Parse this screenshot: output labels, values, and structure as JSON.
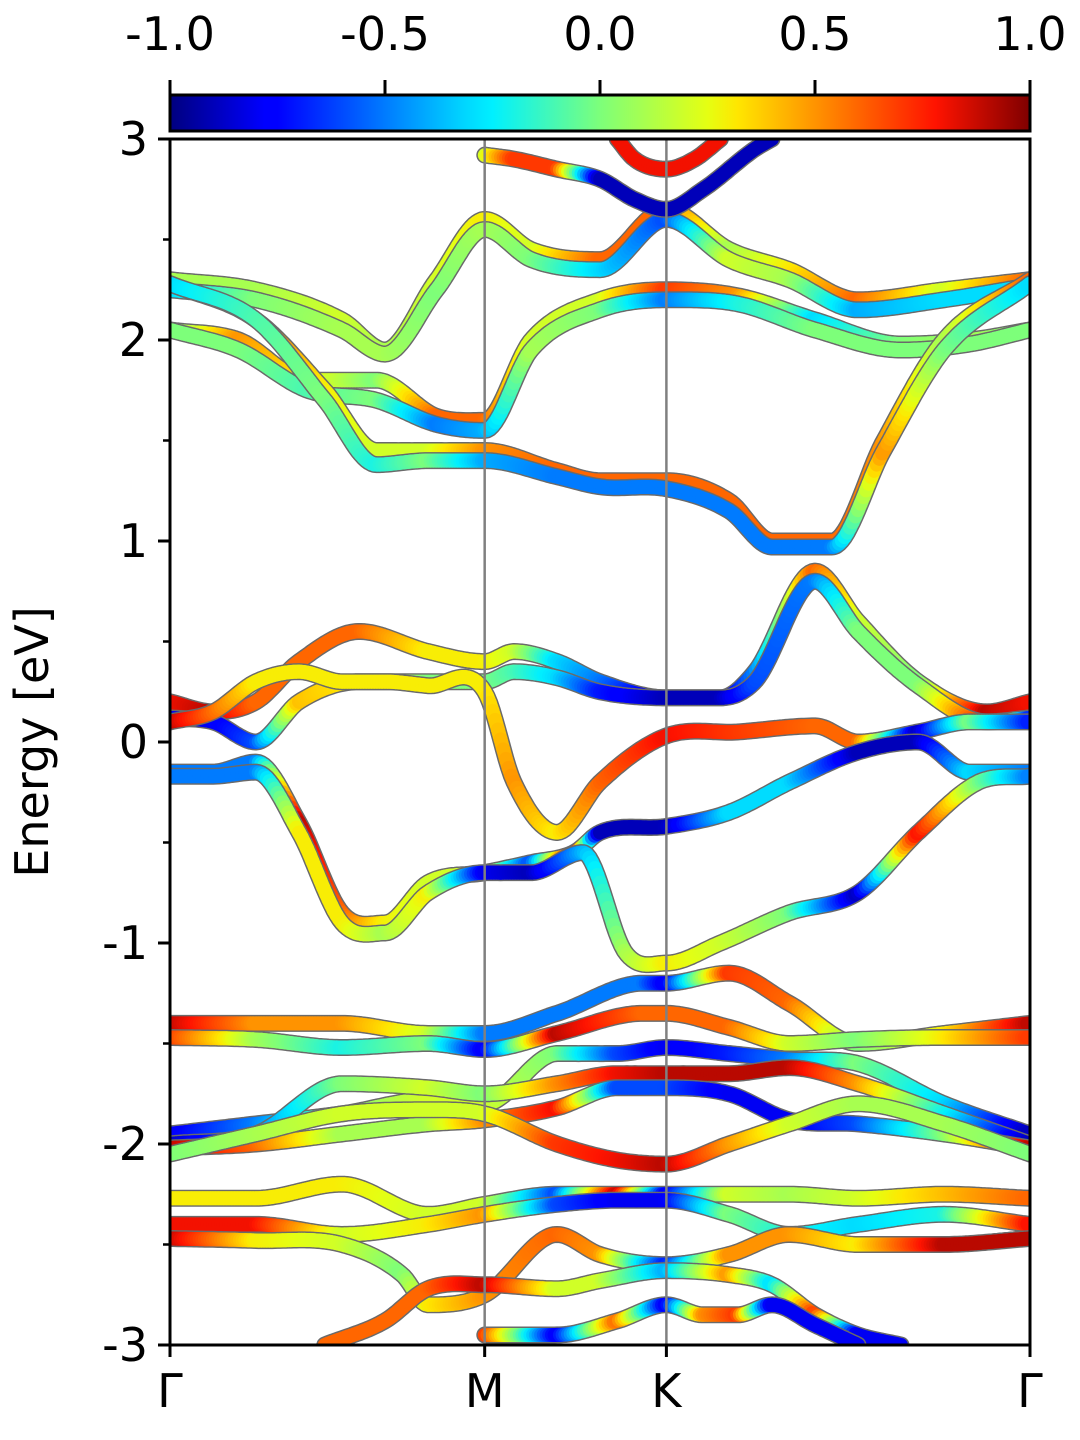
{
  "chart_data": {
    "type": "line",
    "ylabel": "Energy [eV]",
    "xlabel": "",
    "title": "",
    "ylim": [
      -3,
      3
    ],
    "y_ticks": [
      "3",
      "2",
      "1",
      "0",
      "-1",
      "-2",
      "-3"
    ],
    "y_tick_values": [
      3,
      2,
      1,
      0,
      -1,
      -2,
      -3
    ],
    "x_ticks": [
      {
        "label": "Γ",
        "x": 0.0
      },
      {
        "label": "M",
        "x": 0.3659
      },
      {
        "label": "K",
        "x": 0.5772
      },
      {
        "label": "Γ",
        "x": 1.0
      }
    ],
    "xlim": [
      0,
      1
    ],
    "colorbar": {
      "colormap": "jet",
      "range": [
        -1.0,
        1.0
      ],
      "tick_labels": [
        "-1.0",
        "-0.5",
        "0.0",
        "0.5",
        "1.0"
      ],
      "tick_values": [
        -1.0,
        -0.5,
        0.0,
        0.5,
        1.0
      ]
    },
    "bands": [
      {
        "x": [
          0,
          0.1,
          0.2,
          0.25,
          0.31,
          0.366,
          0.42,
          0.5,
          0.577,
          0.65,
          0.72,
          0.8,
          0.9,
          1
        ],
        "y": [
          2.3,
          2.25,
          2.1,
          1.95,
          2.3,
          2.6,
          2.45,
          2.4,
          2.65,
          2.45,
          2.35,
          2.2,
          2.25,
          2.3
        ],
        "c": [
          0.1,
          0.1,
          0.2,
          0.1,
          0.2,
          0.3,
          0.2,
          0.6,
          0.6,
          0.1,
          0.3,
          0.6,
          0.2,
          0.6
        ]
      },
      {
        "x": [
          0,
          0.1,
          0.2,
          0.25,
          0.31,
          0.366,
          0.42,
          0.5,
          0.577,
          0.65,
          0.72,
          0.8,
          0.9,
          1
        ],
        "y": [
          2.25,
          2.2,
          2.05,
          1.93,
          2.25,
          2.55,
          2.4,
          2.35,
          2.6,
          2.4,
          2.3,
          2.15,
          2.2,
          2.27
        ],
        "c": [
          -0.3,
          0.0,
          0.1,
          0.1,
          0.0,
          0.1,
          0.0,
          -0.3,
          -0.6,
          0.2,
          0.1,
          -0.4,
          -0.3,
          -0.3
        ]
      },
      {
        "x": [
          0,
          0.08,
          0.16,
          0.24,
          0.31,
          0.366,
          0.42,
          0.5,
          0.577,
          0.66,
          0.75,
          0.85,
          0.93,
          1
        ],
        "y": [
          2.05,
          2.0,
          1.8,
          1.8,
          1.62,
          1.6,
          2.0,
          2.2,
          2.25,
          2.22,
          2.1,
          1.98,
          2.0,
          2.05
        ],
        "c": [
          0.0,
          0.5,
          0.3,
          0.0,
          0.6,
          0.6,
          0.2,
          0.2,
          0.7,
          0.5,
          -0.3,
          0.0,
          0.1,
          0.0
        ]
      },
      {
        "x": [
          0,
          0.08,
          0.16,
          0.24,
          0.31,
          0.366,
          0.42,
          0.5,
          0.577,
          0.66,
          0.75,
          0.85,
          0.93,
          1
        ],
        "y": [
          2.05,
          1.95,
          1.75,
          1.7,
          1.58,
          1.55,
          1.95,
          2.15,
          2.2,
          2.18,
          2.05,
          1.95,
          1.98,
          2.05
        ],
        "c": [
          0.0,
          0.0,
          -0.1,
          0.0,
          -0.5,
          -0.4,
          0.1,
          0.0,
          -0.5,
          -0.2,
          0.0,
          0.0,
          0.0,
          0.0
        ]
      },
      {
        "x": [
          0,
          0.1,
          0.18,
          0.24,
          0.3,
          0.366,
          0.45,
          0.5,
          0.577,
          0.65,
          0.7,
          0.77,
          0.83,
          0.9,
          1
        ],
        "y": [
          2.28,
          2.1,
          1.75,
          1.45,
          1.45,
          1.45,
          1.35,
          1.3,
          1.3,
          1.2,
          1.0,
          1.0,
          1.5,
          2.0,
          2.3
        ],
        "c": [
          0.1,
          0.6,
          0.3,
          0.2,
          0.2,
          0.5,
          0.6,
          0.6,
          0.6,
          0.6,
          0.6,
          0.6,
          0.5,
          0.1,
          0.6
        ]
      },
      {
        "x": [
          0,
          0.1,
          0.18,
          0.24,
          0.3,
          0.366,
          0.45,
          0.5,
          0.577,
          0.65,
          0.7,
          0.77,
          0.83,
          0.9,
          1
        ],
        "y": [
          2.28,
          2.1,
          1.7,
          1.38,
          1.4,
          1.4,
          1.32,
          1.27,
          1.26,
          1.15,
          0.97,
          0.97,
          1.45,
          1.95,
          2.28
        ],
        "c": [
          -0.3,
          -0.1,
          0.0,
          -0.2,
          0.0,
          -0.4,
          -0.5,
          -0.5,
          -0.5,
          -0.5,
          -0.5,
          -0.5,
          0.5,
          0.0,
          -0.3
        ]
      },
      {
        "x": [
          0,
          0.05,
          0.1,
          0.15,
          0.22,
          0.3,
          0.366,
          0.4,
          0.45,
          0.5,
          0.577,
          0.64,
          0.68,
          0.75,
          0.8,
          0.87,
          0.95,
          1
        ],
        "y": [
          0.2,
          0.15,
          0.2,
          0.4,
          0.55,
          0.45,
          0.4,
          0.45,
          0.4,
          0.3,
          0.22,
          0.22,
          0.35,
          0.85,
          0.6,
          0.3,
          0.15,
          0.2
        ],
        "c": [
          0.8,
          0.9,
          0.6,
          0.6,
          0.6,
          0.3,
          0.3,
          0.2,
          -0.3,
          -0.5,
          -0.9,
          -0.9,
          -0.5,
          0.6,
          0.2,
          0.0,
          0.9,
          0.8
        ]
      },
      {
        "x": [
          0,
          0.05,
          0.1,
          0.15,
          0.22,
          0.3,
          0.366,
          0.4,
          0.45,
          0.5,
          0.577,
          0.64,
          0.68,
          0.75,
          0.8,
          0.87,
          0.95,
          1
        ],
        "y": [
          0.12,
          0.1,
          0.0,
          0.2,
          0.3,
          0.3,
          0.3,
          0.35,
          0.32,
          0.25,
          0.22,
          0.22,
          0.3,
          0.8,
          0.55,
          0.28,
          0.1,
          0.12
        ],
        "c": [
          -0.8,
          -0.8,
          -0.6,
          0.4,
          0.3,
          0.0,
          0.0,
          -0.1,
          -0.3,
          -0.7,
          -0.9,
          -0.9,
          -0.6,
          -0.5,
          0.0,
          0.0,
          0.8,
          -0.7
        ]
      },
      {
        "x": [
          0,
          0.05,
          0.1,
          0.15,
          0.2,
          0.25,
          0.3,
          0.366,
          0.4,
          0.45,
          0.5,
          0.577,
          0.66,
          0.75,
          0.8,
          0.87,
          0.93,
          1
        ],
        "y": [
          0.1,
          0.15,
          0.3,
          0.35,
          0.3,
          0.3,
          0.28,
          0.25,
          -0.2,
          -0.45,
          -0.2,
          0.03,
          0.05,
          0.08,
          0.0,
          0.05,
          0.1,
          0.1
        ],
        "c": [
          0.9,
          0.6,
          0.3,
          0.3,
          0.3,
          0.3,
          0.3,
          0.3,
          0.5,
          0.3,
          0.6,
          0.8,
          0.7,
          0.6,
          0.6,
          -0.9,
          0.0,
          -0.7
        ]
      },
      {
        "x": [
          0,
          0.05,
          0.1,
          0.15,
          0.2,
          0.25,
          0.3,
          0.366,
          0.42,
          0.47,
          0.5,
          0.577,
          0.65,
          0.72,
          0.8,
          0.87,
          0.93,
          1
        ],
        "y": [
          -0.15,
          -0.15,
          -0.1,
          -0.4,
          -0.85,
          -0.9,
          -0.7,
          -0.65,
          -0.6,
          -0.55,
          -0.45,
          -0.42,
          -0.35,
          -0.2,
          -0.05,
          0.0,
          -0.15,
          -0.15
        ],
        "c": [
          -0.5,
          -0.5,
          -0.5,
          0.9,
          0.6,
          0.3,
          0.2,
          0.2,
          -0.6,
          0.9,
          -0.9,
          -0.9,
          -0.3,
          -0.3,
          -0.9,
          -0.9,
          -0.3,
          -0.5
        ]
      },
      {
        "x": [
          0,
          0.05,
          0.1,
          0.15,
          0.2,
          0.25,
          0.3,
          0.366,
          0.42,
          0.48,
          0.53,
          0.577,
          0.64,
          0.72,
          0.8,
          0.87,
          0.94,
          1
        ],
        "y": [
          -0.17,
          -0.17,
          -0.15,
          -0.45,
          -0.9,
          -0.95,
          -0.75,
          -0.65,
          -0.65,
          -0.55,
          -1.05,
          -1.1,
          -1.0,
          -0.85,
          -0.75,
          -0.45,
          -0.2,
          -0.17
        ],
        "c": [
          -0.5,
          -0.5,
          -0.5,
          0.3,
          0.3,
          0.1,
          0.3,
          -0.8,
          -0.9,
          -0.4,
          0.1,
          0.3,
          0.2,
          0.0,
          -0.9,
          0.8,
          0.0,
          -0.5
        ]
      },
      {
        "x": [
          0,
          0.1,
          0.2,
          0.3,
          0.366,
          0.45,
          0.55,
          0.577,
          0.65,
          0.72,
          0.8,
          0.9,
          1
        ],
        "y": [
          -1.4,
          -1.4,
          -1.4,
          -1.45,
          -1.45,
          -1.35,
          -1.2,
          -1.2,
          -1.15,
          -1.3,
          -1.5,
          -1.45,
          -1.4
        ],
        "c": [
          0.9,
          0.5,
          0.5,
          0.2,
          -0.5,
          -0.5,
          -0.5,
          -0.8,
          0.7,
          0.6,
          0.0,
          0.3,
          0.9
        ]
      },
      {
        "x": [
          0,
          0.1,
          0.2,
          0.3,
          0.366,
          0.45,
          0.55,
          0.577,
          0.65,
          0.72,
          0.8,
          0.9,
          1
        ],
        "y": [
          -1.47,
          -1.48,
          -1.52,
          -1.5,
          -1.53,
          -1.45,
          -1.35,
          -1.35,
          -1.42,
          -1.5,
          -1.48,
          -1.47,
          -1.47
        ],
        "c": [
          0.7,
          0.1,
          -0.2,
          0.0,
          -0.8,
          0.9,
          0.6,
          0.6,
          0.6,
          0.2,
          0.0,
          0.3,
          0.7
        ]
      },
      {
        "x": [
          0,
          0.1,
          0.2,
          0.3,
          0.366,
          0.45,
          0.52,
          0.577,
          0.65,
          0.72,
          0.8,
          0.9,
          1
        ],
        "y": [
          -1.95,
          -1.9,
          -1.85,
          -1.78,
          -1.8,
          -1.55,
          -1.55,
          -1.52,
          -1.55,
          -1.58,
          -1.6,
          -1.8,
          -1.95
        ],
        "c": [
          -0.8,
          -0.5,
          0.0,
          0.2,
          0.2,
          0.0,
          -0.6,
          -0.8,
          -0.7,
          -0.5,
          0.0,
          -0.3,
          -0.9
        ]
      },
      {
        "x": [
          0,
          0.1,
          0.2,
          0.3,
          0.366,
          0.45,
          0.52,
          0.577,
          0.65,
          0.72,
          0.8,
          0.9,
          1
        ],
        "y": [
          -2.0,
          -1.95,
          -1.7,
          -1.72,
          -1.75,
          -1.7,
          -1.65,
          -1.65,
          -1.65,
          -1.62,
          -1.7,
          -1.85,
          -2.0
        ],
        "c": [
          -0.9,
          -0.5,
          0.0,
          0.2,
          0.0,
          0.5,
          0.8,
          0.9,
          0.9,
          0.9,
          0.5,
          -0.2,
          -0.9
        ]
      },
      {
        "x": [
          0,
          0.1,
          0.2,
          0.3,
          0.366,
          0.45,
          0.52,
          0.577,
          0.65,
          0.72,
          0.8,
          0.9,
          1
        ],
        "y": [
          -2.02,
          -2.0,
          -1.95,
          -1.9,
          -1.88,
          -1.82,
          -1.72,
          -1.72,
          -1.75,
          -1.88,
          -1.9,
          -1.95,
          -2.02
        ],
        "c": [
          0.9,
          0.6,
          0.1,
          0.1,
          0.5,
          0.8,
          -0.6,
          -0.6,
          -0.8,
          -0.8,
          -0.6,
          0.0,
          0.9
        ]
      },
      {
        "x": [
          0,
          0.1,
          0.2,
          0.3,
          0.366,
          0.45,
          0.52,
          0.577,
          0.65,
          0.72,
          0.8,
          0.9,
          1
        ],
        "y": [
          -2.05,
          -1.95,
          -1.85,
          -1.83,
          -1.85,
          -2.0,
          -2.08,
          -2.1,
          -2.0,
          -1.9,
          -1.8,
          -1.9,
          -2.05
        ],
        "c": [
          0.0,
          0.1,
          0.2,
          0.2,
          0.2,
          0.7,
          0.8,
          0.9,
          0.5,
          0.2,
          0.1,
          0.1,
          0.0
        ]
      },
      {
        "x": [
          0,
          0.1,
          0.2,
          0.3,
          0.366,
          0.45,
          0.52,
          0.577,
          0.65,
          0.72,
          0.8,
          0.9,
          1
        ],
        "y": [
          -2.27,
          -2.27,
          -2.2,
          -2.35,
          -2.3,
          -2.25,
          -2.25,
          -2.25,
          -2.25,
          -2.25,
          -2.27,
          -2.25,
          -2.27
        ],
        "c": [
          0.3,
          0.3,
          0.3,
          0.2,
          0.2,
          -0.6,
          0.9,
          -0.8,
          0.2,
          0.1,
          0.2,
          0.4,
          0.6
        ]
      },
      {
        "x": [
          0,
          0.1,
          0.2,
          0.3,
          0.366,
          0.45,
          0.52,
          0.577,
          0.65,
          0.72,
          0.8,
          0.9,
          1
        ],
        "y": [
          -2.4,
          -2.4,
          -2.45,
          -2.4,
          -2.35,
          -2.3,
          -2.28,
          -2.28,
          -2.35,
          -2.45,
          -2.4,
          -2.35,
          -2.4
        ],
        "c": [
          0.8,
          0.8,
          0.2,
          0.3,
          0.5,
          -0.6,
          -0.8,
          -0.8,
          0.0,
          -0.2,
          -0.3,
          -0.2,
          0.8
        ]
      },
      {
        "x": [
          0,
          0.1,
          0.2,
          0.27,
          0.3,
          0.366,
          0.45,
          0.5,
          0.577,
          0.65,
          0.72,
          0.8,
          0.9,
          1
        ],
        "y": [
          -2.47,
          -2.48,
          -2.5,
          -2.65,
          -2.8,
          -2.75,
          -2.45,
          -2.55,
          -2.6,
          -2.55,
          -2.45,
          -2.5,
          -2.5,
          -2.47
        ],
        "c": [
          0.9,
          0.3,
          0.2,
          0.0,
          0.3,
          0.5,
          0.6,
          0.5,
          -0.7,
          0.5,
          0.5,
          0.3,
          0.9,
          0.9
        ]
      },
      {
        "x": [
          0.18,
          0.25,
          0.3,
          0.366,
          0.45,
          0.5,
          0.577,
          0.65,
          0.7,
          0.75,
          0.8,
          0.85
        ],
        "y": [
          -3.0,
          -2.88,
          -2.72,
          -2.7,
          -2.72,
          -2.68,
          -2.63,
          -2.65,
          -2.7,
          -2.85,
          -2.95,
          -3.0
        ],
        "c": [
          0.6,
          0.6,
          0.6,
          0.9,
          0.2,
          0.2,
          -0.4,
          0.5,
          -0.3,
          0.7,
          -0.8,
          -0.8
        ]
      },
      {
        "x": [
          0.366,
          0.45,
          0.52,
          0.577,
          0.62,
          0.66,
          0.7,
          0.75,
          0.8
        ],
        "y": [
          -2.95,
          -2.95,
          -2.88,
          -2.8,
          -2.85,
          -2.85,
          -2.8,
          -2.9,
          -3.0
        ],
        "c": [
          0.7,
          -0.8,
          0.6,
          -0.8,
          0.5,
          0.7,
          -0.8,
          -0.8,
          -0.8
        ]
      },
      {
        "x": [
          0.366,
          0.4,
          0.45,
          0.5,
          0.54,
          0.577,
          0.62,
          0.68,
          0.7
        ],
        "y": [
          2.92,
          2.9,
          2.85,
          2.8,
          2.7,
          2.65,
          2.75,
          2.95,
          3.0
        ],
        "c": [
          0.2,
          0.7,
          0.7,
          -0.9,
          -0.9,
          -0.9,
          -0.9,
          -0.9,
          -0.9
        ]
      },
      {
        "x": [
          0.52,
          0.54,
          0.577,
          0.61,
          0.64
        ],
        "y": [
          3.0,
          2.9,
          2.85,
          2.9,
          3.0
        ],
        "c": [
          0.8,
          0.8,
          0.8,
          0.8,
          0.8
        ]
      }
    ]
  }
}
